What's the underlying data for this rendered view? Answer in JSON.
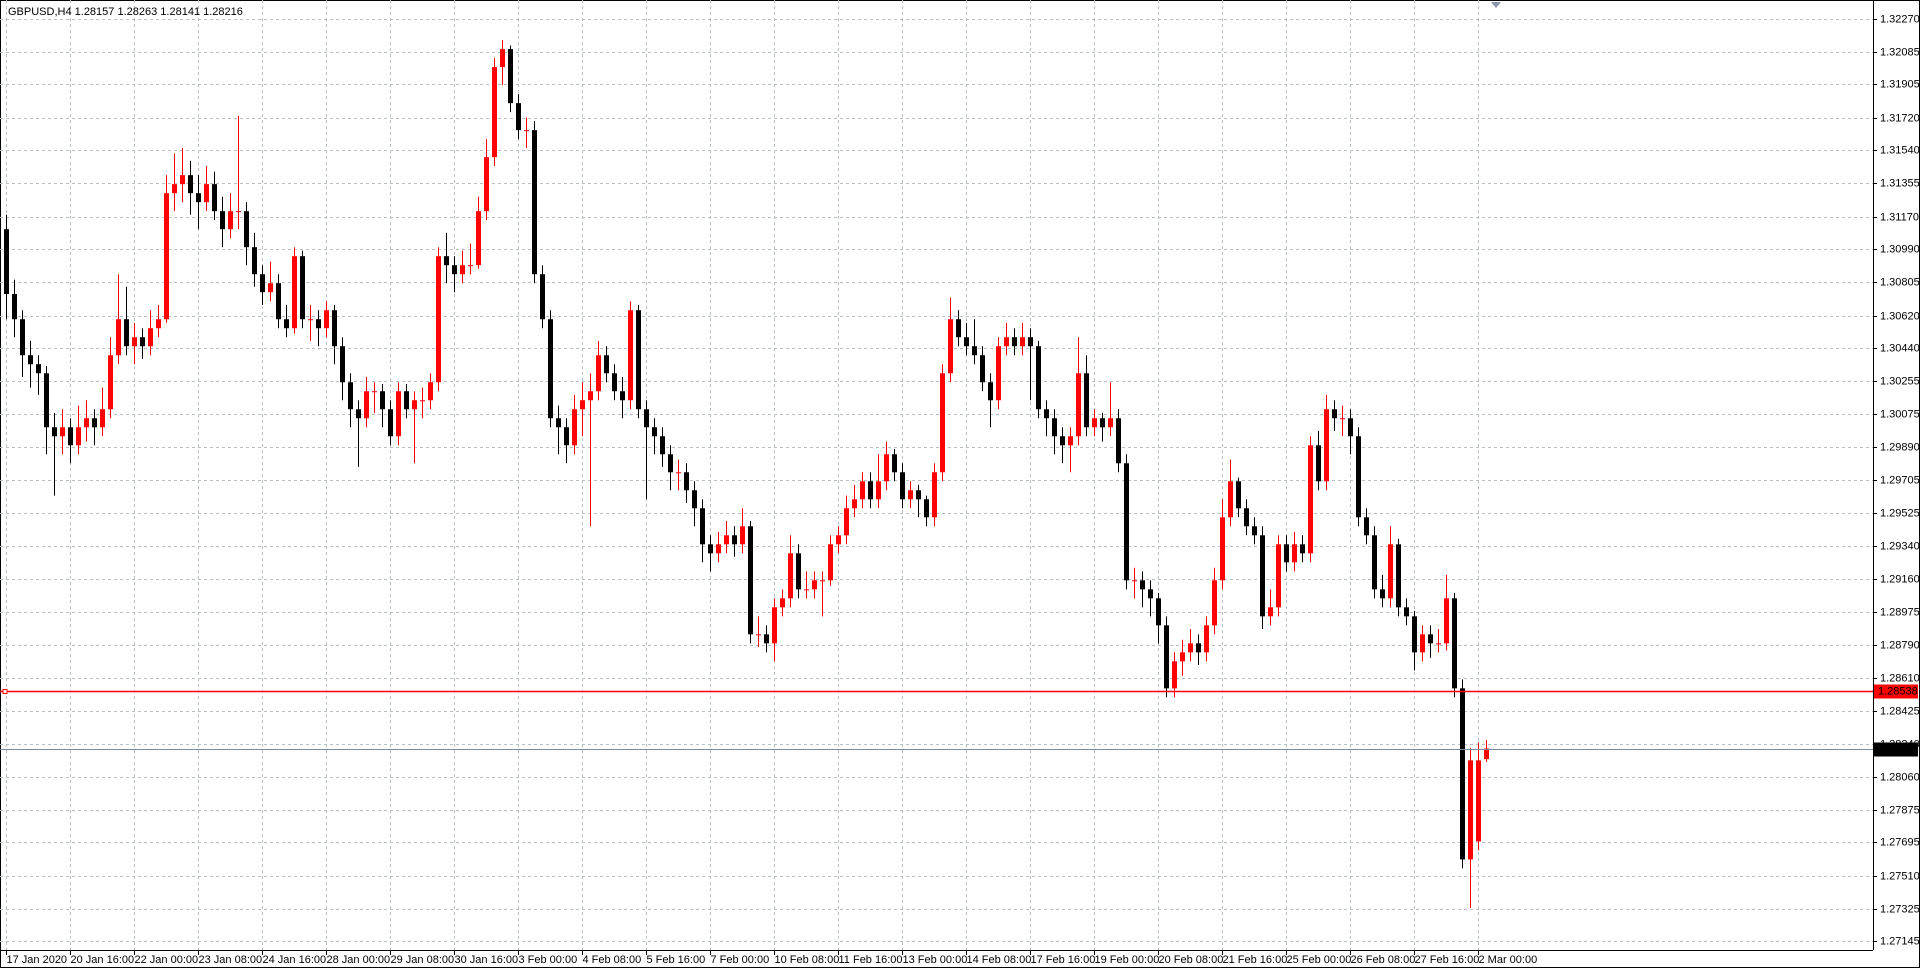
{
  "chart_data": {
    "type": "candlestick",
    "symbol": "GBPUSD,H4",
    "bull_color": "#ff0000",
    "bear_color": "#000000",
    "grid": true,
    "ylim": [
      1.27097,
      1.32345
    ],
    "yticks": [
      {
        "value": 1.3227,
        "label": "1.32270"
      },
      1.32085,
      1.31905,
      {
        "value": 1.3172,
        "label": "1.31720"
      },
      {
        "value": 1.3154,
        "label": "1.31540"
      },
      1.31355,
      {
        "value": 1.3117,
        "label": "1.31170"
      },
      {
        "value": 1.3099,
        "label": "1.30990"
      },
      1.30805,
      {
        "value": 1.3062,
        "label": "1.30620"
      },
      {
        "value": 1.3044,
        "label": "1.30440"
      },
      1.30255,
      1.30075,
      {
        "value": 1.2989,
        "label": "1.29890"
      },
      1.29705,
      1.29525,
      {
        "value": 1.2934,
        "label": "1.29340"
      },
      {
        "value": 1.2916,
        "label": "1.29160"
      },
      1.28975,
      {
        "value": 1.2879,
        "label": "1.28790"
      },
      {
        "value": 1.2861,
        "label": "1.28610"
      },
      1.28425,
      {
        "value": 1.2824,
        "label": "1.28240"
      },
      {
        "value": 1.2806,
        "label": "1.28060"
      },
      1.27875,
      1.27695,
      {
        "value": 1.2751,
        "label": "1.27510"
      },
      1.27325,
      1.27145
    ],
    "xticks": [
      {
        "value": 0,
        "label": "17 Jan 2020"
      },
      {
        "value": 8,
        "label": "20 Jan 16:00"
      },
      {
        "value": 16,
        "label": "22 Jan 00:00"
      },
      {
        "value": 24,
        "label": "23 Jan 08:00"
      },
      {
        "value": 32,
        "label": "24 Jan 16:00"
      },
      {
        "value": 40,
        "label": "28 Jan 00:00"
      },
      {
        "value": 48,
        "label": "29 Jan 08:00"
      },
      {
        "value": 56,
        "label": "30 Jan 16:00"
      },
      {
        "value": 64,
        "label": "3 Feb 00:00"
      },
      {
        "value": 72,
        "label": "4 Feb 08:00"
      },
      {
        "value": 80,
        "label": "5 Feb 16:00"
      },
      {
        "value": 88,
        "label": "7 Feb 00:00"
      },
      {
        "value": 96,
        "label": "10 Feb 08:00"
      },
      {
        "value": 104,
        "label": "11 Feb 16:00"
      },
      {
        "value": 112,
        "label": "13 Feb 00:00"
      },
      {
        "value": 120,
        "label": "14 Feb 08:00"
      },
      {
        "value": 128,
        "label": "17 Feb 16:00"
      },
      {
        "value": 136,
        "label": "19 Feb 00:00"
      },
      {
        "value": 144,
        "label": "20 Feb 08:00"
      },
      {
        "value": 152,
        "label": "21 Feb 16:00"
      },
      {
        "value": 160,
        "label": "25 Feb 00:00"
      },
      {
        "value": 168,
        "label": "26 Feb 08:00"
      },
      {
        "value": 176,
        "label": "27 Feb 16:00"
      },
      {
        "value": 184,
        "label": "2 Mar 00:00"
      }
    ],
    "hline": {
      "value": 1.28538,
      "color": "#ff0000"
    },
    "ohlc": [
      [
        1.311,
        1.3118,
        1.306,
        1.3074
      ],
      [
        1.3074,
        1.3082,
        1.305,
        1.306
      ],
      [
        1.306,
        1.3065,
        1.3028,
        1.304
      ],
      [
        1.304,
        1.3048,
        1.3022,
        1.3035
      ],
      [
        1.3035,
        1.304,
        1.3018,
        1.303
      ],
      [
        1.303,
        1.3034,
        1.2985,
        1.3
      ],
      [
        1.3,
        1.3008,
        1.2962,
        1.2995
      ],
      [
        1.2995,
        1.301,
        1.2985,
        1.3
      ],
      [
        1.3,
        1.3005,
        1.298,
        1.299
      ],
      [
        1.299,
        1.3012,
        1.2985,
        1.3
      ],
      [
        1.3,
        1.3015,
        1.2992,
        1.3005
      ],
      [
        1.3005,
        1.301,
        1.299,
        1.3
      ],
      [
        1.3,
        1.3022,
        1.2995,
        1.301
      ],
      [
        1.301,
        1.305,
        1.3005,
        1.304
      ],
      [
        1.304,
        1.3085,
        1.3035,
        1.306
      ],
      [
        1.306,
        1.3078,
        1.304,
        1.3045
      ],
      [
        1.3045,
        1.3058,
        1.3035,
        1.305
      ],
      [
        1.305,
        1.3055,
        1.3038,
        1.3045
      ],
      [
        1.3045,
        1.3065,
        1.304,
        1.3055
      ],
      [
        1.3055,
        1.3068,
        1.305,
        1.306
      ],
      [
        1.306,
        1.314,
        1.3058,
        1.313
      ],
      [
        1.313,
        1.3152,
        1.312,
        1.3135
      ],
      [
        1.3135,
        1.3155,
        1.3125,
        1.314
      ],
      [
        1.314,
        1.3148,
        1.3118,
        1.313
      ],
      [
        1.313,
        1.314,
        1.311,
        1.3125
      ],
      [
        1.3125,
        1.3145,
        1.312,
        1.3135
      ],
      [
        1.3135,
        1.3142,
        1.3115,
        1.312
      ],
      [
        1.312,
        1.3128,
        1.31,
        1.311
      ],
      [
        1.311,
        1.313,
        1.3105,
        1.312
      ],
      [
        1.312,
        1.3173,
        1.311,
        1.312
      ],
      [
        1.312,
        1.3125,
        1.309,
        1.31
      ],
      [
        1.31,
        1.3108,
        1.3078,
        1.3085
      ],
      [
        1.3085,
        1.309,
        1.3068,
        1.3075
      ],
      [
        1.3075,
        1.3092,
        1.307,
        1.308
      ],
      [
        1.308,
        1.3085,
        1.3055,
        1.306
      ],
      [
        1.306,
        1.3068,
        1.305,
        1.3055
      ],
      [
        1.3055,
        1.31,
        1.3052,
        1.3095
      ],
      [
        1.3095,
        1.3098,
        1.3055,
        1.306
      ],
      [
        1.306,
        1.3068,
        1.3048,
        1.306
      ],
      [
        1.306,
        1.3065,
        1.3045,
        1.3055
      ],
      [
        1.3055,
        1.307,
        1.305,
        1.3065
      ],
      [
        1.3065,
        1.3068,
        1.3035,
        1.3045
      ],
      [
        1.3045,
        1.305,
        1.3015,
        1.3025
      ],
      [
        1.3025,
        1.303,
        1.3,
        1.301
      ],
      [
        1.301,
        1.3015,
        1.2978,
        1.3005
      ],
      [
        1.3005,
        1.3028,
        1.3,
        1.302
      ],
      [
        1.302,
        1.3025,
        1.3008,
        1.302
      ],
      [
        1.302,
        1.3024,
        1.3,
        1.301
      ],
      [
        1.301,
        1.3015,
        1.299,
        1.2995
      ],
      [
        1.2995,
        1.3025,
        1.299,
        1.302
      ],
      [
        1.302,
        1.3024,
        1.3005,
        1.301
      ],
      [
        1.301,
        1.302,
        1.298,
        1.3015
      ],
      [
        1.3015,
        1.3022,
        1.3005,
        1.3015
      ],
      [
        1.3015,
        1.303,
        1.301,
        1.3025
      ],
      [
        1.3025,
        1.31,
        1.302,
        1.3095
      ],
      [
        1.3095,
        1.3108,
        1.308,
        1.309
      ],
      [
        1.309,
        1.3095,
        1.3075,
        1.3085
      ],
      [
        1.3085,
        1.3098,
        1.308,
        1.309
      ],
      [
        1.309,
        1.3102,
        1.3085,
        1.309
      ],
      [
        1.309,
        1.3128,
        1.3088,
        1.312
      ],
      [
        1.312,
        1.316,
        1.3115,
        1.315
      ],
      [
        1.315,
        1.3205,
        1.3145,
        1.32
      ],
      [
        1.32,
        1.3215,
        1.319,
        1.321
      ],
      [
        1.321,
        1.3212,
        1.3175,
        1.318
      ],
      [
        1.318,
        1.3185,
        1.316,
        1.3165
      ],
      [
        1.3165,
        1.3172,
        1.3155,
        1.3165
      ],
      [
        1.3165,
        1.317,
        1.308,
        1.3085
      ],
      [
        1.3085,
        1.309,
        1.3055,
        1.306
      ],
      [
        1.306,
        1.3065,
        1.3,
        1.3005
      ],
      [
        1.3005,
        1.3012,
        1.2985,
        1.3
      ],
      [
        1.3,
        1.3005,
        1.298,
        1.299
      ],
      [
        1.299,
        1.3018,
        1.2985,
        1.301
      ],
      [
        1.301,
        1.3025,
        1.2995,
        1.3015
      ],
      [
        1.3015,
        1.303,
        1.2945,
        1.302
      ],
      [
        1.302,
        1.3048,
        1.3015,
        1.304
      ],
      [
        1.304,
        1.3045,
        1.3025,
        1.303
      ],
      [
        1.303,
        1.3035,
        1.3015,
        1.302
      ],
      [
        1.302,
        1.3028,
        1.3005,
        1.3015
      ],
      [
        1.3015,
        1.307,
        1.301,
        1.3065
      ],
      [
        1.3065,
        1.3068,
        1.3005,
        1.301
      ],
      [
        1.301,
        1.3015,
        1.296,
        1.3
      ],
      [
        1.3,
        1.3005,
        1.2985,
        1.2995
      ],
      [
        1.2995,
        1.3,
        1.2978,
        1.2985
      ],
      [
        1.2985,
        1.299,
        1.2965,
        1.2975
      ],
      [
        1.2975,
        1.2982,
        1.2965,
        1.2975
      ],
      [
        1.2975,
        1.298,
        1.2958,
        1.2965
      ],
      [
        1.2965,
        1.297,
        1.2945,
        1.2955
      ],
      [
        1.2955,
        1.296,
        1.2925,
        1.2935
      ],
      [
        1.2935,
        1.294,
        1.292,
        1.293
      ],
      [
        1.293,
        1.2942,
        1.2925,
        1.2935
      ],
      [
        1.2935,
        1.2948,
        1.293,
        1.294
      ],
      [
        1.294,
        1.2945,
        1.2928,
        1.2935
      ],
      [
        1.2935,
        1.2955,
        1.293,
        1.2945
      ],
      [
        1.2945,
        1.2948,
        1.288,
        1.2885
      ],
      [
        1.2885,
        1.2895,
        1.2878,
        1.2885
      ],
      [
        1.2885,
        1.289,
        1.2875,
        1.288
      ],
      [
        1.288,
        1.2905,
        1.287,
        1.29
      ],
      [
        1.29,
        1.291,
        1.2895,
        1.2905
      ],
      [
        1.2905,
        1.294,
        1.29,
        1.293
      ],
      [
        1.293,
        1.2935,
        1.2905,
        1.291
      ],
      [
        1.291,
        1.292,
        1.2905,
        1.291
      ],
      [
        1.291,
        1.292,
        1.2905,
        1.2915
      ],
      [
        1.2915,
        1.292,
        1.2895,
        1.2915
      ],
      [
        1.2915,
        1.294,
        1.2912,
        1.2935
      ],
      [
        1.2935,
        1.2945,
        1.293,
        1.294
      ],
      [
        1.294,
        1.2962,
        1.2935,
        1.2955
      ],
      [
        1.2955,
        1.2968,
        1.295,
        1.296
      ],
      [
        1.296,
        1.2975,
        1.2955,
        1.297
      ],
      [
        1.297,
        1.2975,
        1.2955,
        1.296
      ],
      [
        1.296,
        1.2985,
        1.2955,
        1.297
      ],
      [
        1.297,
        1.2992,
        1.2965,
        1.2985
      ],
      [
        1.2985,
        1.2988,
        1.297,
        1.2975
      ],
      [
        1.2975,
        1.298,
        1.2955,
        1.296
      ],
      [
        1.296,
        1.297,
        1.2955,
        1.2965
      ],
      [
        1.2965,
        1.2968,
        1.295,
        1.296
      ],
      [
        1.296,
        1.2962,
        1.2945,
        1.295
      ],
      [
        1.295,
        1.298,
        1.2945,
        1.2975
      ],
      [
        1.2975,
        1.3035,
        1.297,
        1.303
      ],
      [
        1.303,
        1.3072,
        1.3025,
        1.306
      ],
      [
        1.306,
        1.3065,
        1.3045,
        1.305
      ],
      [
        1.305,
        1.3058,
        1.304,
        1.3045
      ],
      [
        1.3045,
        1.306,
        1.3035,
        1.304
      ],
      [
        1.304,
        1.3045,
        1.302,
        1.3025
      ],
      [
        1.3025,
        1.303,
        1.3,
        1.3015
      ],
      [
        1.3015,
        1.305,
        1.301,
        1.3045
      ],
      [
        1.3045,
        1.3058,
        1.304,
        1.305
      ],
      [
        1.305,
        1.3055,
        1.304,
        1.3045
      ],
      [
        1.3045,
        1.3058,
        1.304,
        1.305
      ],
      [
        1.305,
        1.3055,
        1.3015,
        1.3045
      ],
      [
        1.3045,
        1.3048,
        1.3005,
        1.301
      ],
      [
        1.301,
        1.3015,
        1.2995,
        1.3005
      ],
      [
        1.3005,
        1.301,
        1.2985,
        1.2995
      ],
      [
        1.2995,
        1.3,
        1.298,
        1.299
      ],
      [
        1.299,
        1.3,
        1.2975,
        1.2995
      ],
      [
        1.2995,
        1.305,
        1.299,
        1.303
      ],
      [
        1.303,
        1.304,
        1.2995,
        1.3
      ],
      [
        1.3,
        1.301,
        1.2995,
        1.3005
      ],
      [
        1.3005,
        1.3008,
        1.2992,
        1.3
      ],
      [
        1.3,
        1.3025,
        1.2995,
        1.3005
      ],
      [
        1.3005,
        1.301,
        1.2975,
        1.298
      ],
      [
        1.298,
        1.2985,
        1.291,
        1.2915
      ],
      [
        1.2915,
        1.2922,
        1.2905,
        1.2915
      ],
      [
        1.2915,
        1.292,
        1.29,
        1.291
      ],
      [
        1.291,
        1.2915,
        1.2895,
        1.2905
      ],
      [
        1.2905,
        1.2908,
        1.288,
        1.289
      ],
      [
        1.289,
        1.2895,
        1.285,
        1.2855
      ],
      [
        1.2855,
        1.2875,
        1.285,
        1.287
      ],
      [
        1.287,
        1.2882,
        1.2862,
        1.2875
      ],
      [
        1.2875,
        1.2888,
        1.287,
        1.288
      ],
      [
        1.288,
        1.2885,
        1.2868,
        1.2875
      ],
      [
        1.2875,
        1.2895,
        1.287,
        1.289
      ],
      [
        1.289,
        1.2922,
        1.2885,
        1.2915
      ],
      [
        1.2915,
        1.296,
        1.291,
        1.295
      ],
      [
        1.295,
        1.2982,
        1.2945,
        1.297
      ],
      [
        1.297,
        1.2972,
        1.295,
        1.2955
      ],
      [
        1.2955,
        1.296,
        1.294,
        1.2945
      ],
      [
        1.2945,
        1.295,
        1.2935,
        1.294
      ],
      [
        1.294,
        1.2945,
        1.2888,
        1.2895
      ],
      [
        1.2895,
        1.291,
        1.289,
        1.29
      ],
      [
        1.29,
        1.294,
        1.2895,
        1.2935
      ],
      [
        1.2935,
        1.294,
        1.292,
        1.2925
      ],
      [
        1.2925,
        1.2942,
        1.292,
        1.2935
      ],
      [
        1.2935,
        1.294,
        1.2925,
        1.293
      ],
      [
        1.293,
        1.2995,
        1.2925,
        1.299
      ],
      [
        1.299,
        1.2998,
        1.2965,
        1.297
      ],
      [
        1.297,
        1.3018,
        1.2965,
        1.301
      ],
      [
        1.301,
        1.3015,
        1.2998,
        1.3005
      ],
      [
        1.3005,
        1.3012,
        1.2995,
        1.3005
      ],
      [
        1.3005,
        1.301,
        1.2985,
        1.2995
      ],
      [
        1.2995,
        1.3,
        1.2945,
        1.295
      ],
      [
        1.295,
        1.2955,
        1.2935,
        1.294
      ],
      [
        1.294,
        1.2945,
        1.2905,
        1.291
      ],
      [
        1.291,
        1.2918,
        1.29,
        1.2905
      ],
      [
        1.2905,
        1.2945,
        1.29,
        1.2935
      ],
      [
        1.2935,
        1.2938,
        1.2895,
        1.29
      ],
      [
        1.29,
        1.2905,
        1.289,
        1.2895
      ],
      [
        1.2895,
        1.2898,
        1.2865,
        1.2875
      ],
      [
        1.2875,
        1.289,
        1.287,
        1.2885
      ],
      [
        1.2885,
        1.289,
        1.2872,
        1.288
      ],
      [
        1.288,
        1.2888,
        1.2875,
        1.288
      ],
      [
        1.288,
        1.2918,
        1.2876,
        1.2905
      ],
      [
        1.2905,
        1.2908,
        1.285,
        1.2855
      ],
      [
        1.2855,
        1.286,
        1.2755,
        1.276
      ],
      [
        1.276,
        1.2822,
        1.2733,
        1.2815
      ],
      [
        1.277,
        1.2825,
        1.2765,
        1.2815
      ],
      [
        1.28157,
        1.28263,
        1.28141,
        1.28216
      ]
    ]
  }
}
